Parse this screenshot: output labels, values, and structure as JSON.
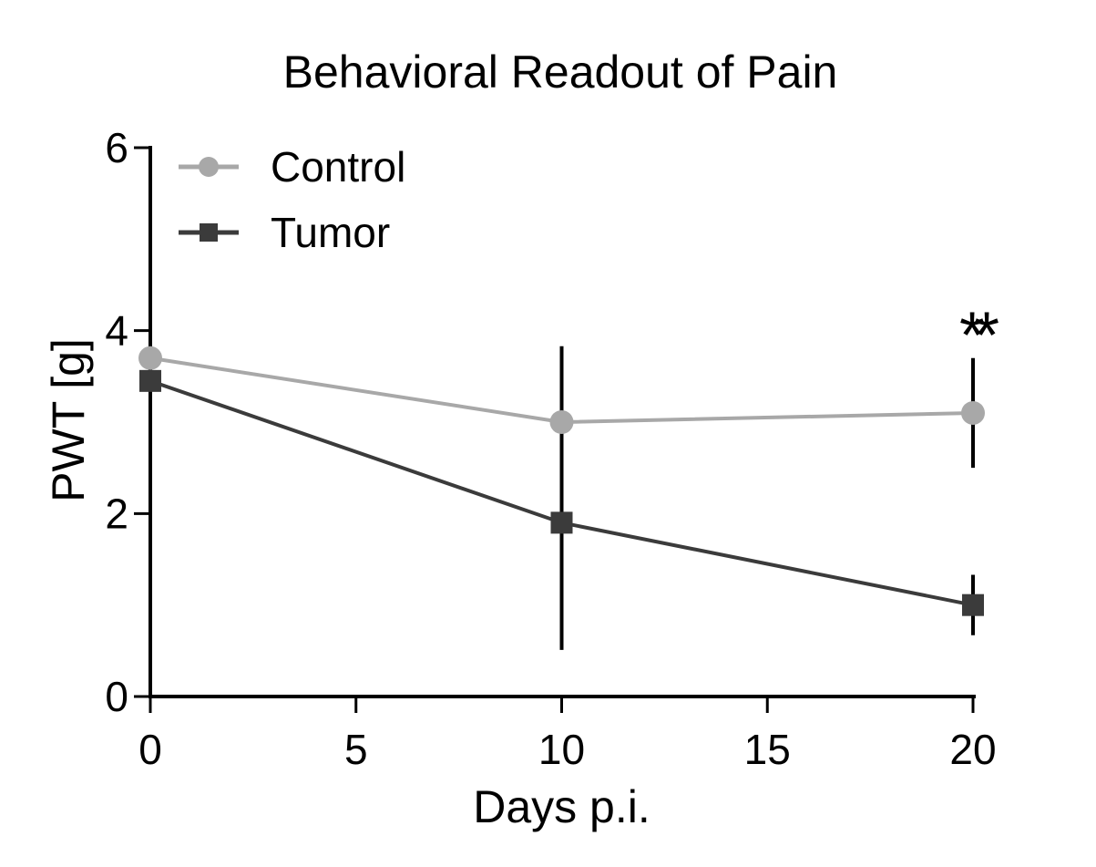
{
  "figure": {
    "background": "#FFFFFF",
    "text_color": "#000000"
  },
  "chart_data": {
    "type": "line",
    "title": "Behavioral Readout of Pain",
    "xlabel": "Days p.i.",
    "ylabel": "PWT [g]",
    "x_ticks": [
      0,
      5,
      10,
      15,
      20
    ],
    "y_ticks": [
      0,
      2,
      4,
      6
    ],
    "xlim": [
      0,
      20
    ],
    "ylim": [
      0,
      6
    ],
    "grid": false,
    "legend_position": "top-left-inside",
    "axis_color": "#000000",
    "error_bar_color": "#000000",
    "series": [
      {
        "name": "Control",
        "marker": "circle",
        "color": "#A8A8A8",
        "x": [
          0,
          10,
          20
        ],
        "y": [
          3.7,
          3.0,
          3.1
        ],
        "err": [
          0,
          0.83,
          0.6
        ]
      },
      {
        "name": "Tumor",
        "marker": "square",
        "color": "#3B3B3B",
        "x": [
          0,
          10,
          20
        ],
        "y": [
          3.45,
          1.9,
          1.0
        ],
        "err": [
          0,
          1.39,
          0.33
        ]
      }
    ],
    "annotations": [
      {
        "text": "**",
        "x": 20,
        "y": 4.08
      }
    ]
  }
}
